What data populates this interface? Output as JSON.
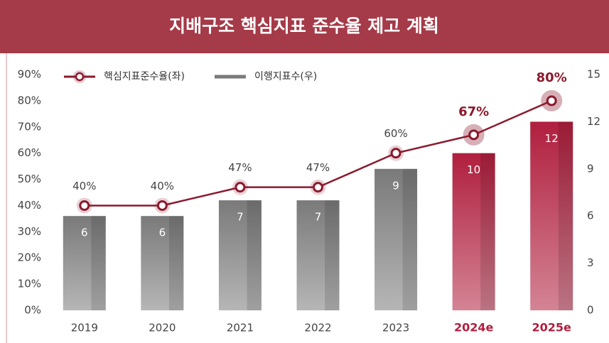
{
  "chart_data": {
    "type": "bar",
    "title": "지배구조 핵심지표 준수율 제고 계획",
    "categories": [
      "2019",
      "2020",
      "2021",
      "2022",
      "2023",
      "2024e",
      "2025e"
    ],
    "highlight": [
      false,
      false,
      false,
      false,
      false,
      true,
      true
    ],
    "series": [
      {
        "name": "핵심지표준수율(좌)",
        "type": "line",
        "axis": "y",
        "color": "#8b1a2e",
        "values": [
          40,
          40,
          47,
          47,
          60,
          67,
          80
        ],
        "value_labels": [
          "40%",
          "40%",
          "47%",
          "47%",
          "60%",
          "67%",
          "80%"
        ]
      },
      {
        "name": "이행지표수(우)",
        "type": "bar",
        "axis": "y2",
        "color": "#7a7a7a",
        "colors": [
          "#7a7a7a",
          "#7a7a7a",
          "#7a7a7a",
          "#7a7a7a",
          "#7a7a7a",
          "#b01f3e",
          "#b01f3e"
        ],
        "values": [
          6,
          6,
          7,
          7,
          9,
          10,
          12
        ]
      }
    ],
    "ylim": [
      0,
      90
    ],
    "yticks": [
      {
        "value": 0,
        "label": "0%"
      },
      {
        "value": 10,
        "label": "10%"
      },
      {
        "value": 20,
        "label": "20%"
      },
      {
        "value": 30,
        "label": "30%"
      },
      {
        "value": 40,
        "label": "40%"
      },
      {
        "value": 50,
        "label": "50%"
      },
      {
        "value": 60,
        "label": "60%"
      },
      {
        "value": 70,
        "label": "70%"
      },
      {
        "value": 80,
        "label": "80%"
      },
      {
        "value": 90,
        "label": "90%"
      }
    ],
    "y2lim": [
      0,
      15
    ],
    "y2ticks": [
      0,
      3,
      6,
      9,
      12,
      15
    ],
    "legend": "top-left",
    "grid": false
  }
}
